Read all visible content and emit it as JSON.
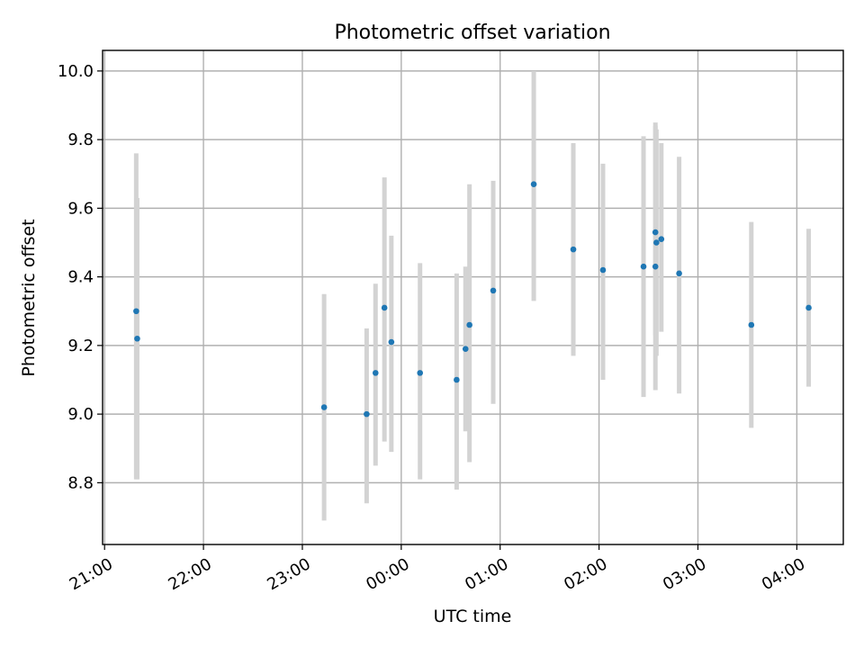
{
  "chart_data": {
    "type": "scatter",
    "title": "Photometric offset variation",
    "xlabel": "UTC time",
    "ylabel": "Photometric offset",
    "x_axis": "time",
    "x_tick_labels": [
      "21:00",
      "22:00",
      "23:00",
      "00:00",
      "01:00",
      "02:00",
      "03:00",
      "04:00"
    ],
    "x_ticks_hours": [
      21,
      22,
      23,
      24,
      25,
      26,
      27,
      28
    ],
    "y_ticks": [
      8.8,
      9.0,
      9.2,
      9.4,
      9.6,
      9.8,
      10.0
    ],
    "xlim_hours": [
      20.98,
      28.47
    ],
    "ylim": [
      8.62,
      10.06
    ],
    "grid": true,
    "marker_color": "#1f77b4",
    "errorbar_color": "#d3d3d3",
    "series": [
      {
        "points": [
          {
            "t": "21:19",
            "th": 21.32,
            "y": 9.3,
            "lo": 8.81,
            "hi": 9.76
          },
          {
            "t": "21:19",
            "th": 21.33,
            "y": 9.22,
            "lo": 8.81,
            "hi": 9.63
          },
          {
            "t": "23:13",
            "th": 23.22,
            "y": 9.02,
            "lo": 8.69,
            "hi": 9.35
          },
          {
            "t": "23:39",
            "th": 23.65,
            "y": 9.0,
            "lo": 8.74,
            "hi": 9.25
          },
          {
            "t": "23:45",
            "th": 23.74,
            "y": 9.12,
            "lo": 8.85,
            "hi": 9.38
          },
          {
            "t": "23:50",
            "th": 23.83,
            "y": 9.31,
            "lo": 8.92,
            "hi": 9.69
          },
          {
            "t": "23:54",
            "th": 23.9,
            "y": 9.21,
            "lo": 8.89,
            "hi": 9.52
          },
          {
            "t": "00:11",
            "th": 24.19,
            "y": 9.12,
            "lo": 8.81,
            "hi": 9.44
          },
          {
            "t": "00:33",
            "th": 24.56,
            "y": 9.1,
            "lo": 8.78,
            "hi": 9.41
          },
          {
            "t": "00:39",
            "th": 24.65,
            "y": 9.19,
            "lo": 8.95,
            "hi": 9.43
          },
          {
            "t": "00:41",
            "th": 24.69,
            "y": 9.26,
            "lo": 8.86,
            "hi": 9.67
          },
          {
            "t": "00:56",
            "th": 24.93,
            "y": 9.36,
            "lo": 9.03,
            "hi": 9.68
          },
          {
            "t": "01:20",
            "th": 25.34,
            "y": 9.67,
            "lo": 9.33,
            "hi": 10.0
          },
          {
            "t": "01:44",
            "th": 25.74,
            "y": 9.48,
            "lo": 9.17,
            "hi": 9.79
          },
          {
            "t": "02:02",
            "th": 26.04,
            "y": 9.42,
            "lo": 9.1,
            "hi": 9.73
          },
          {
            "t": "02:27",
            "th": 26.45,
            "y": 9.43,
            "lo": 9.05,
            "hi": 9.81
          },
          {
            "t": "02:34",
            "th": 26.57,
            "y": 9.43,
            "lo": 9.07,
            "hi": 9.85
          },
          {
            "t": "02:34",
            "th": 26.57,
            "y": 9.53,
            "lo": 9.23,
            "hi": 9.84
          },
          {
            "t": "02:35",
            "th": 26.58,
            "y": 9.5,
            "lo": 9.17,
            "hi": 9.83
          },
          {
            "t": "02:38",
            "th": 26.63,
            "y": 9.51,
            "lo": 9.24,
            "hi": 9.79
          },
          {
            "t": "02:49",
            "th": 26.81,
            "y": 9.41,
            "lo": 9.06,
            "hi": 9.75
          },
          {
            "t": "03:32",
            "th": 27.54,
            "y": 9.26,
            "lo": 8.96,
            "hi": 9.56
          },
          {
            "t": "04:07",
            "th": 28.12,
            "y": 9.31,
            "lo": 9.08,
            "hi": 9.54
          }
        ]
      }
    ]
  }
}
